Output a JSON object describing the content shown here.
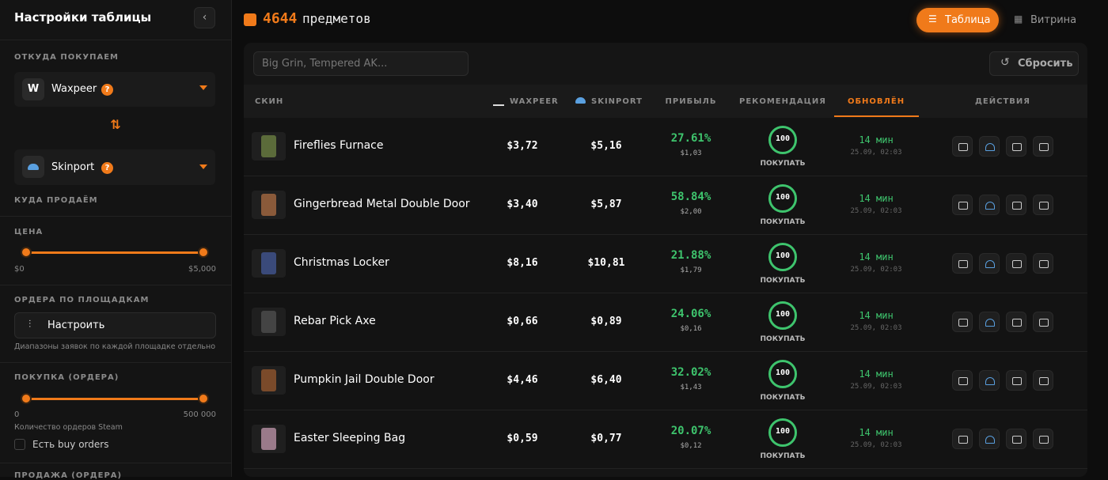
{
  "sidebar": {
    "title": "Настройки таблицы",
    "buy_from_label": "ОТКУДА ПОКУПАЕМ",
    "buy_from": "Waxpeer",
    "help_badge": "?",
    "sell_to": "Skinport",
    "sell_to_label": "КУДА ПРОДАЁМ",
    "price_label": "ЦЕНА",
    "price_min": "$0",
    "price_max": "$5,000",
    "orders_label": "ОРДЕРА ПО ПЛОЩАДКАМ",
    "configure": "Настроить",
    "orders_hint": "Диапазоны заявок по каждой площадке отдельно",
    "buy_orders_label": "ПОКУПКА (ОРДЕРА)",
    "buy_orders_min": "0",
    "buy_orders_max": "500 000",
    "steam_count": "Количество ордеров Steam",
    "has_buy_orders": "Есть buy orders",
    "sell_orders_label": "ПРОДАЖА (ОРДЕРА)"
  },
  "header": {
    "count": "4644",
    "count_label": "предметов",
    "views": [
      "Таблица",
      "Витрина"
    ]
  },
  "search": {
    "placeholder": "Big Grin, Tempered AK...",
    "reset": "Сбросить"
  },
  "table": {
    "columns": [
      "СКИН",
      "WAXPEER",
      "SKINPORT",
      "ПРИБЫЛЬ",
      "РЕКОМЕНДАЦИЯ",
      "ОБНОВЛЁН",
      "ДЕЙСТВИЯ"
    ],
    "rows": [
      {
        "name": "Fireflies Furnace",
        "waxpeer": "$3,72",
        "skinport": "$5,16",
        "profit": "27.61%",
        "profit_abs": "$1,03",
        "score": "100",
        "score_label": "ПОКУПАТЬ",
        "updated": "14 мин",
        "updated_at": "25.09, 02:03"
      },
      {
        "name": "Gingerbread Metal Double Door",
        "waxpeer": "$3,40",
        "skinport": "$5,87",
        "profit": "58.84%",
        "profit_abs": "$2,00",
        "score": "100",
        "score_label": "ПОКУПАТЬ",
        "updated": "14 мин",
        "updated_at": "25.09, 02:03"
      },
      {
        "name": "Christmas Locker",
        "waxpeer": "$8,16",
        "skinport": "$10,81",
        "profit": "21.88%",
        "profit_abs": "$1,79",
        "score": "100",
        "score_label": "ПОКУПАТЬ",
        "updated": "14 мин",
        "updated_at": "25.09, 02:03"
      },
      {
        "name": "Rebar Pick Axe",
        "waxpeer": "$0,66",
        "skinport": "$0,89",
        "profit": "24.06%",
        "profit_abs": "$0,16",
        "score": "100",
        "score_label": "ПОКУПАТЬ",
        "updated": "14 мин",
        "updated_at": "25.09, 02:03"
      },
      {
        "name": "Pumpkin Jail Double Door",
        "waxpeer": "$4,46",
        "skinport": "$6,40",
        "profit": "32.02%",
        "profit_abs": "$1,43",
        "score": "100",
        "score_label": "ПОКУПАТЬ",
        "updated": "14 мин",
        "updated_at": "25.09, 02:03"
      },
      {
        "name": "Easter Sleeping Bag",
        "waxpeer": "$0,59",
        "skinport": "$0,77",
        "profit": "20.07%",
        "profit_abs": "$0,12",
        "score": "100",
        "score_label": "ПОКУПАТЬ",
        "updated": "14 мин",
        "updated_at": "25.09, 02:03"
      }
    ]
  }
}
